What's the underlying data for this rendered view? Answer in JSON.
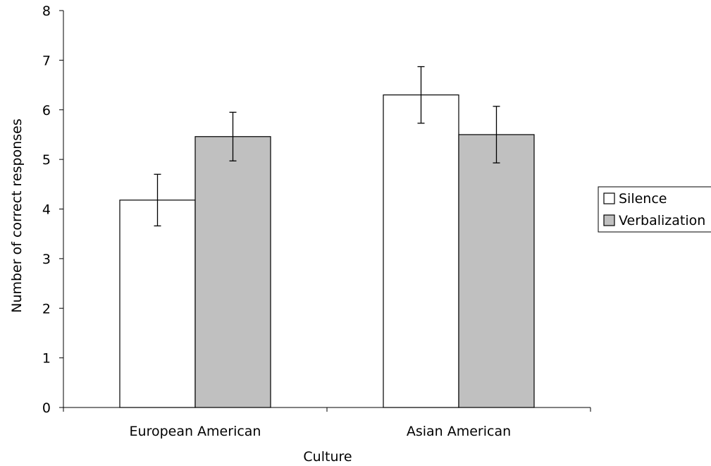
{
  "chart_data": {
    "type": "bar",
    "title": "",
    "xlabel": "Culture",
    "ylabel": "Number of correct responses",
    "categories": [
      "European American",
      "Asian American"
    ],
    "series": [
      {
        "name": "Silence",
        "values": [
          4.18,
          6.3
        ],
        "errors": [
          0.52,
          0.57
        ],
        "color": "#ffffff"
      },
      {
        "name": "Verbalization",
        "values": [
          5.46,
          5.5
        ],
        "errors": [
          0.49,
          0.57
        ],
        "color": "#c0c0c0"
      }
    ],
    "ylim": [
      0,
      8
    ],
    "yticks": [
      "0",
      "1",
      "2",
      "3",
      "4",
      "5",
      "6",
      "7",
      "8"
    ],
    "grid": false,
    "legend": {
      "position": "right",
      "entries": [
        "Silence",
        "Verbalization"
      ]
    }
  }
}
